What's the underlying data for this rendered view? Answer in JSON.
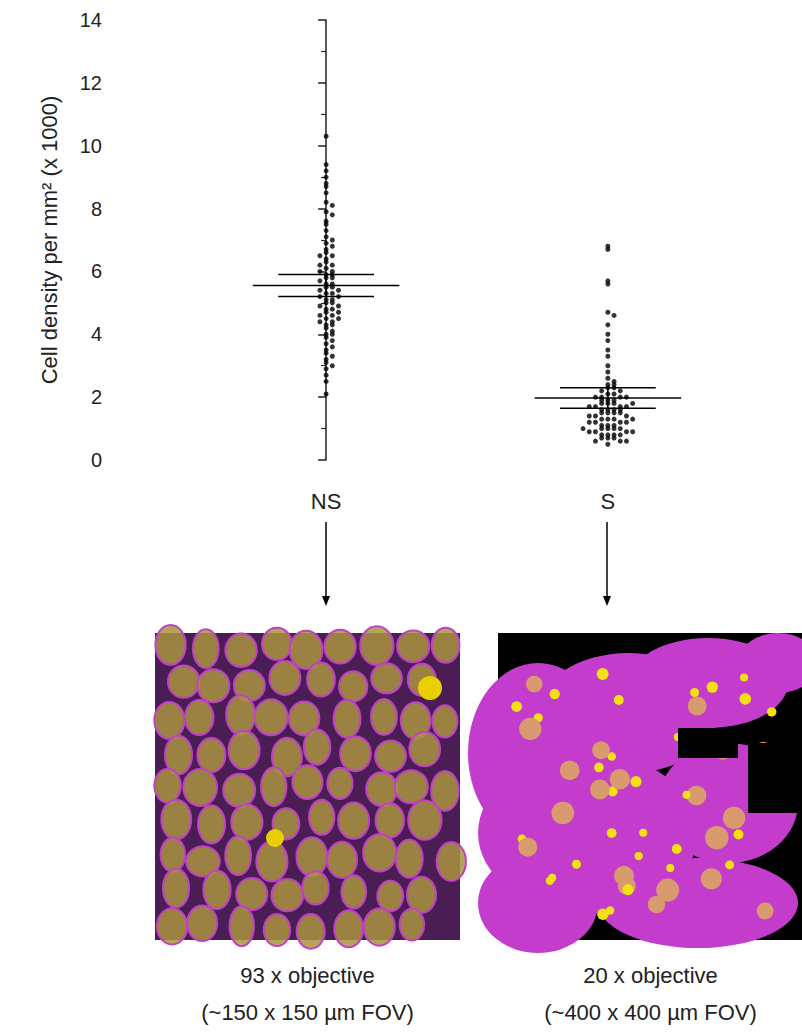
{
  "chart_data": {
    "type": "scatter",
    "ylabel": "Cell density per mm² (x 1000)",
    "categories": [
      "NS",
      "S"
    ],
    "values": [
      [
        10.3,
        9.4,
        9.2,
        9.0,
        8.8,
        8.7,
        8.5,
        8.2,
        8.1,
        7.9,
        7.8,
        7.6,
        7.5,
        7.3,
        7.1,
        7.0,
        6.9,
        6.8,
        6.7,
        6.6,
        6.5,
        6.4,
        6.3,
        6.2,
        6.1,
        6.0,
        6.0,
        5.9,
        5.8,
        5.8,
        5.7,
        5.6,
        5.5,
        5.5,
        5.4,
        5.3,
        5.3,
        5.2,
        5.1,
        5.0,
        5.0,
        4.9,
        4.8,
        4.8,
        4.7,
        4.6,
        4.6,
        4.5,
        4.4,
        4.4,
        4.3,
        4.3,
        4.2,
        4.1,
        4.0,
        4.0,
        3.9,
        3.8,
        3.7,
        3.6,
        3.5,
        3.4,
        3.3,
        3.2,
        3.1,
        3.0,
        2.9,
        2.7,
        2.5,
        2.1,
        5.9,
        5.6,
        5.2,
        4.9,
        6.2,
        5.4,
        4.7,
        5.1,
        6.5,
        4.5
      ],
      [
        6.8,
        6.7,
        5.7,
        5.6,
        4.7,
        4.6,
        4.3,
        4.0,
        3.8,
        3.5,
        3.3,
        3.0,
        2.8,
        2.6,
        2.5,
        2.4,
        2.4,
        2.3,
        2.3,
        2.2,
        2.2,
        2.1,
        2.1,
        2.0,
        2.0,
        2.0,
        1.9,
        1.9,
        1.9,
        1.8,
        1.8,
        1.8,
        1.7,
        1.7,
        1.7,
        1.7,
        1.6,
        1.6,
        1.6,
        1.5,
        1.5,
        1.5,
        1.5,
        1.4,
        1.4,
        1.4,
        1.3,
        1.3,
        1.3,
        1.2,
        1.2,
        1.2,
        1.2,
        1.1,
        1.1,
        1.1,
        1.0,
        1.0,
        1.0,
        1.0,
        0.9,
        0.9,
        0.9,
        0.9,
        0.8,
        0.8,
        0.8,
        0.8,
        0.7,
        0.7,
        0.7,
        0.6,
        0.6,
        0.6,
        0.5,
        1.6,
        1.8,
        2.0,
        1.3,
        1.0
      ]
    ],
    "mean": [
      5.55,
      1.97
    ],
    "ci_lower": [
      5.2,
      1.65
    ],
    "ci_upper": [
      5.9,
      2.3
    ],
    "color": "#000000",
    "ylim": [
      0,
      14
    ],
    "yticks": [
      0,
      2,
      4,
      6,
      8,
      10,
      12,
      14
    ],
    "grid": false
  },
  "panels": [
    {
      "caption": [
        "93 x objective",
        "(~150 x 150 µm FOV)"
      ]
    },
    {
      "caption": [
        "20 x objective",
        "(~400 x 400 µm FOV)"
      ]
    }
  ]
}
